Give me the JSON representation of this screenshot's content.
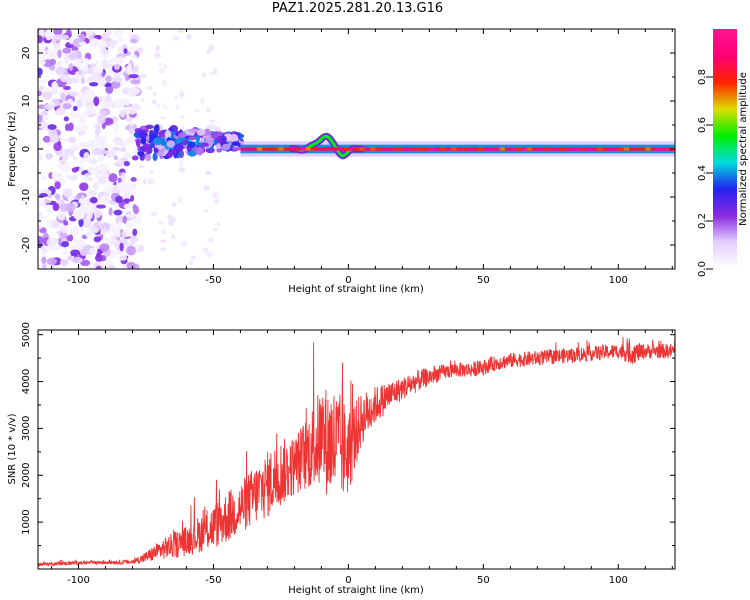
{
  "title": "PAZ1.2025.281.20.13.G16",
  "chart_data": [
    {
      "type": "heatmap",
      "name": "spectrogram",
      "xlabel": "Height of straight line (km)",
      "ylabel": "Frequency (Hz)",
      "xlim": [
        -115,
        121
      ],
      "ylim": [
        -25,
        25
      ],
      "xticks": [
        -100,
        -50,
        0,
        50,
        100
      ],
      "yticks": [
        -20,
        -10,
        0,
        10,
        20
      ],
      "colorbar": {
        "label": "Normalized spectral amplitude",
        "range": [
          0,
          1
        ],
        "ticks": [
          0.0,
          0.2,
          0.4,
          0.6,
          0.8
        ],
        "tick_labels": [
          "0.0",
          "0.2",
          "0.4",
          "0.6",
          "0.8"
        ],
        "colormap_stops": [
          "#ffffff",
          "#e3cfff",
          "#8a2be2",
          "#2222ee",
          "#00dddd",
          "#00ee00",
          "#dddd00",
          "#ff2200",
          "#ff0077",
          "#ff1493"
        ]
      },
      "features": [
        {
          "region": "scattered noise",
          "x_range": [
            -115,
            -78
          ],
          "freq_range": [
            -25,
            25
          ],
          "amplitude": "0.05-0.25"
        },
        {
          "region": "noisy signal cluster",
          "x_range": [
            -78,
            -40
          ],
          "freq_range": [
            -4,
            7
          ],
          "amplitude": "0.2-0.4"
        },
        {
          "region": "narrow carrier line",
          "x_range": [
            -40,
            121
          ],
          "freq_center": 0,
          "amplitude": "0.7-1.0"
        },
        {
          "region": "frequency wobble",
          "x_range": [
            -15,
            -3
          ],
          "freq_peak": 3,
          "amplitude": "0.4-0.6"
        }
      ]
    },
    {
      "type": "line",
      "name": "snr",
      "xlabel": "Height of straight line (km)",
      "ylabel": "SNR (10 * v/v)",
      "xlim": [
        -115,
        121
      ],
      "ylim": [
        0,
        5100
      ],
      "xticks": [
        -100,
        -50,
        0,
        50,
        100
      ],
      "yticks": [
        1000,
        2000,
        3000,
        4000,
        5000
      ],
      "color": "#ee3333",
      "series": [
        {
          "name": "SNR",
          "x": [
            -115,
            -100,
            -90,
            -80,
            -75,
            -70,
            -65,
            -60,
            -55,
            -50,
            -45,
            -40,
            -35,
            -30,
            -25,
            -20,
            -15,
            -10,
            -5,
            0,
            5,
            10,
            15,
            20,
            25,
            30,
            35,
            40,
            45,
            50,
            55,
            60,
            70,
            80,
            90,
            100,
            105,
            110,
            121
          ],
          "y": [
            100,
            130,
            140,
            150,
            250,
            400,
            500,
            600,
            750,
            900,
            1100,
            1300,
            1550,
            1800,
            2050,
            2200,
            2500,
            2800,
            2650,
            2500,
            3200,
            3500,
            3700,
            3850,
            4000,
            4100,
            4200,
            4250,
            4250,
            4300,
            4400,
            4450,
            4500,
            4550,
            4600,
            4650,
            4600,
            4650,
            4650
          ],
          "spread": [
            40,
            50,
            50,
            60,
            150,
            250,
            350,
            400,
            500,
            600,
            700,
            700,
            800,
            900,
            900,
            800,
            1000,
            1400,
            1600,
            1200,
            700,
            500,
            400,
            300,
            300,
            250,
            200,
            200,
            200,
            200,
            200,
            200,
            200,
            200,
            200,
            200,
            300,
            200,
            200
          ]
        }
      ]
    }
  ]
}
